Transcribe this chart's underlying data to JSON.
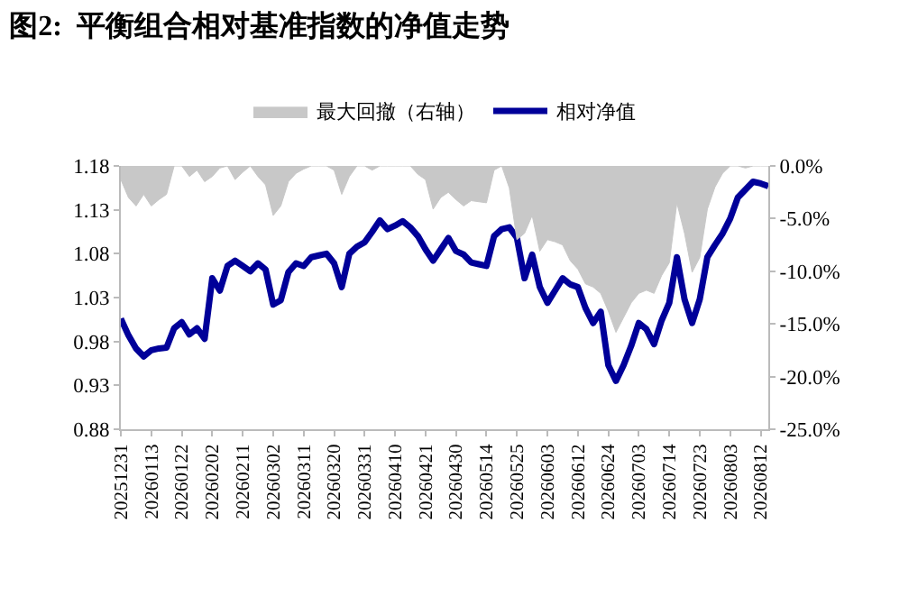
{
  "chart_data": {
    "type": "line",
    "title": "图2:  平衡组合相对基准指数的净值走势",
    "categories": [
      "20251231",
      null,
      null,
      null,
      "20260113",
      null,
      null,
      null,
      "20260122",
      null,
      null,
      null,
      "20260202",
      null,
      null,
      null,
      "20260211",
      null,
      null,
      null,
      "20260302",
      null,
      null,
      null,
      "20260311",
      null,
      null,
      null,
      "20260320",
      null,
      null,
      null,
      "20260331",
      null,
      null,
      null,
      "20260410",
      null,
      null,
      null,
      "20260421",
      null,
      null,
      null,
      "20260430",
      null,
      null,
      null,
      "20260514",
      null,
      null,
      null,
      "20260525",
      null,
      null,
      null,
      "20260603",
      null,
      null,
      null,
      "20260612",
      null,
      null,
      null,
      "20260624",
      null,
      null,
      null,
      "20260703",
      null,
      null,
      null,
      "20260714",
      null,
      null,
      null,
      "20260723",
      null,
      null,
      null,
      "20260803",
      null,
      null,
      null,
      "20260812",
      null
    ],
    "series": [
      {
        "name": "最大回撤（右轴）",
        "type": "area",
        "axis": "y2",
        "color": "#c8c8c8",
        "values": [
          -1.3,
          -3.0,
          -3.8,
          -2.7,
          -3.8,
          -3.2,
          -2.7,
          0,
          0,
          -1.0,
          -0.4,
          -1.5,
          -1.0,
          -0.2,
          0,
          -1.3,
          -0.6,
          0,
          -1.0,
          -1.8,
          -4.7,
          -3.8,
          -1.5,
          -0.7,
          -0.3,
          0,
          0,
          0,
          -0.4,
          -2.7,
          -1.0,
          0,
          0,
          -0.4,
          0,
          0,
          0,
          0,
          0,
          -0.8,
          -1.3,
          -4.1,
          -3.0,
          -2.5,
          -3.2,
          -3.8,
          -3.3,
          -3.4,
          -3.5,
          -0.4,
          0,
          -2.1,
          -7.0,
          -6.4,
          -4.7,
          -8.1,
          -7.0,
          -7.2,
          -7.5,
          -9.0,
          -9.8,
          -11.2,
          -11.5,
          -12.1,
          -13.8,
          -15.8,
          -14.4,
          -13.0,
          -12.1,
          -11.8,
          -12.1,
          -10.4,
          -9.2,
          -3.5,
          -6.4,
          -10.1,
          -8.7,
          -4.1,
          -2.0,
          -0.7,
          0,
          0,
          -0.2,
          0,
          0,
          0
        ]
      },
      {
        "name": "相对净值",
        "type": "line",
        "color": "#000099",
        "values": [
          1.006,
          0.987,
          0.972,
          0.963,
          0.97,
          0.972,
          0.973,
          0.995,
          1.002,
          0.988,
          0.995,
          0.983,
          1.052,
          1.038,
          1.066,
          1.072,
          1.066,
          1.06,
          1.069,
          1.062,
          1.022,
          1.027,
          1.059,
          1.069,
          1.066,
          1.076,
          1.078,
          1.08,
          1.069,
          1.042,
          1.08,
          1.088,
          1.093,
          1.105,
          1.118,
          1.108,
          1.112,
          1.117,
          1.11,
          1.1,
          1.085,
          1.072,
          1.085,
          1.098,
          1.083,
          1.079,
          1.07,
          1.068,
          1.066,
          1.1,
          1.108,
          1.11,
          1.098,
          1.052,
          1.079,
          1.042,
          1.024,
          1.038,
          1.052,
          1.045,
          1.042,
          1.018,
          1.001,
          1.014,
          0.953,
          0.935,
          0.953,
          0.975,
          1.001,
          0.994,
          0.977,
          1.004,
          1.024,
          1.076,
          1.028,
          1.001,
          1.028,
          1.076,
          1.09,
          1.103,
          1.12,
          1.144,
          1.153,
          1.162,
          1.16,
          1.157
        ]
      }
    ],
    "ylim": [
      0.88,
      1.18
    ],
    "yticks": [
      0.88,
      0.93,
      0.98,
      1.03,
      1.08,
      1.13,
      1.18
    ],
    "y2lim": [
      -25,
      0
    ],
    "y2ticks": [
      {
        "value": 0,
        "label": "0.0%"
      },
      {
        "value": -5,
        "label": "-5.0%"
      },
      {
        "value": -10,
        "label": "-10.0%"
      },
      {
        "value": -15,
        "label": "-15.0%"
      },
      {
        "value": -20,
        "label": "-20.0%"
      },
      {
        "value": -25,
        "label": "-25.0%"
      }
    ],
    "grid": false,
    "legend": "top",
    "marker": "none",
    "line_style": "solid"
  }
}
